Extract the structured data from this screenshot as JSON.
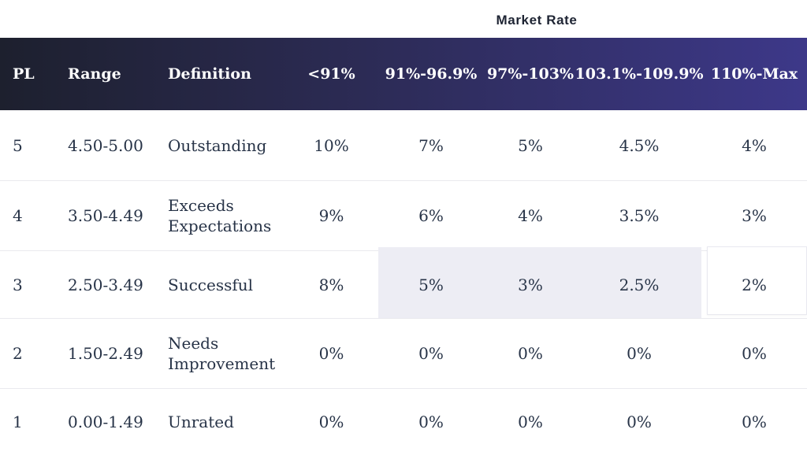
{
  "title": "Market Rate",
  "columns": [
    {
      "label": "PL"
    },
    {
      "label": "Range"
    },
    {
      "label": "Definition"
    },
    {
      "label": "<91%"
    },
    {
      "label": "91%-96.9%"
    },
    {
      "label": "97%-103%"
    },
    {
      "label": "103.1%-109.9%"
    },
    {
      "label": "110%-Max"
    }
  ],
  "rows": [
    {
      "pl": "5",
      "range": "4.50-5.00",
      "definition": "Outstanding",
      "rates": [
        "10%",
        "7%",
        "5%",
        "4.5%",
        "4%"
      ]
    },
    {
      "pl": "4",
      "range": "3.50-4.49",
      "definition": "Exceeds Expectations",
      "rates": [
        "9%",
        "6%",
        "4%",
        "3.5%",
        "3%"
      ]
    },
    {
      "pl": "3",
      "range": "2.50-3.49",
      "definition": "Successful",
      "rates": [
        "8%",
        "5%",
        "3%",
        "2.5%",
        "2%"
      ],
      "highlighted_rate_columns": [
        "91%-96.9%",
        "97%-103%",
        "103.1%-109.9%"
      ],
      "selected_rate_column": "110%-Max",
      "selected_rate_value": "2%"
    },
    {
      "pl": "2",
      "range": "1.50-2.49",
      "definition": "Needs Improvement",
      "rates": [
        "0%",
        "0%",
        "0%",
        "0%",
        "0%"
      ]
    },
    {
      "pl": "1",
      "range": "0.00-1.49",
      "definition": "Unrated",
      "rates": [
        "0%",
        "0%",
        "0%",
        "0%",
        "0%"
      ]
    }
  ],
  "colors": {
    "header_gradient_start": "#1d202e",
    "header_gradient_mid": "#2c2b55",
    "header_gradient_end": "#3d3889",
    "highlight": "#ededf4",
    "selected_card_border": "#e9e9f0",
    "text": "#273347",
    "title_text": "#1e2433",
    "row_divider": "#e9e9ee"
  }
}
